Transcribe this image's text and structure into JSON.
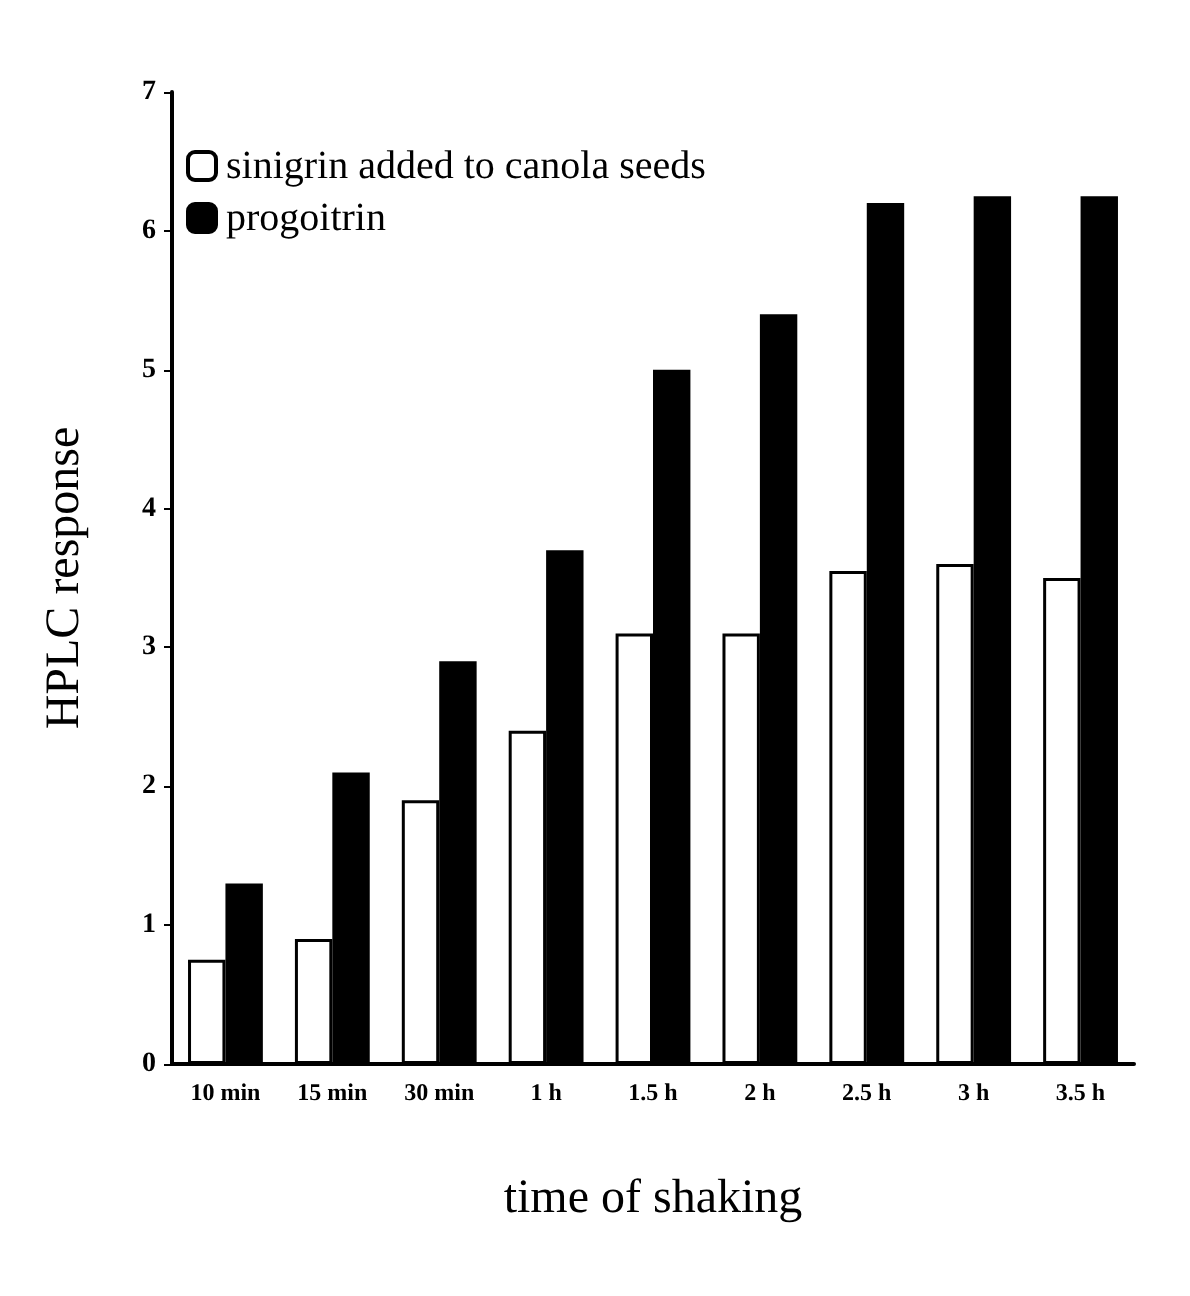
{
  "chart_data": {
    "type": "bar",
    "xlabel": "time of shaking",
    "ylabel": "HPLC response",
    "categories": [
      "10 min",
      "15 min",
      "30 min",
      "1 h",
      "1.5 h",
      "2 h",
      "2.5 h",
      "3 h",
      "3.5 h"
    ],
    "series": [
      {
        "name": "sinigrin added to canola seeds",
        "color": "#ffffff",
        "values": [
          0.75,
          0.9,
          1.9,
          2.4,
          3.1,
          3.1,
          3.55,
          3.6,
          3.5
        ]
      },
      {
        "name": "progoitrin",
        "color": "#000000",
        "values": [
          1.3,
          2.1,
          2.9,
          3.7,
          5.0,
          5.4,
          6.2,
          6.25,
          6.25
        ]
      }
    ],
    "ylim": [
      0,
      7
    ],
    "yticks": [
      0,
      1,
      2,
      3,
      4,
      5,
      6,
      7
    ],
    "grid": false,
    "legend": "top left"
  }
}
